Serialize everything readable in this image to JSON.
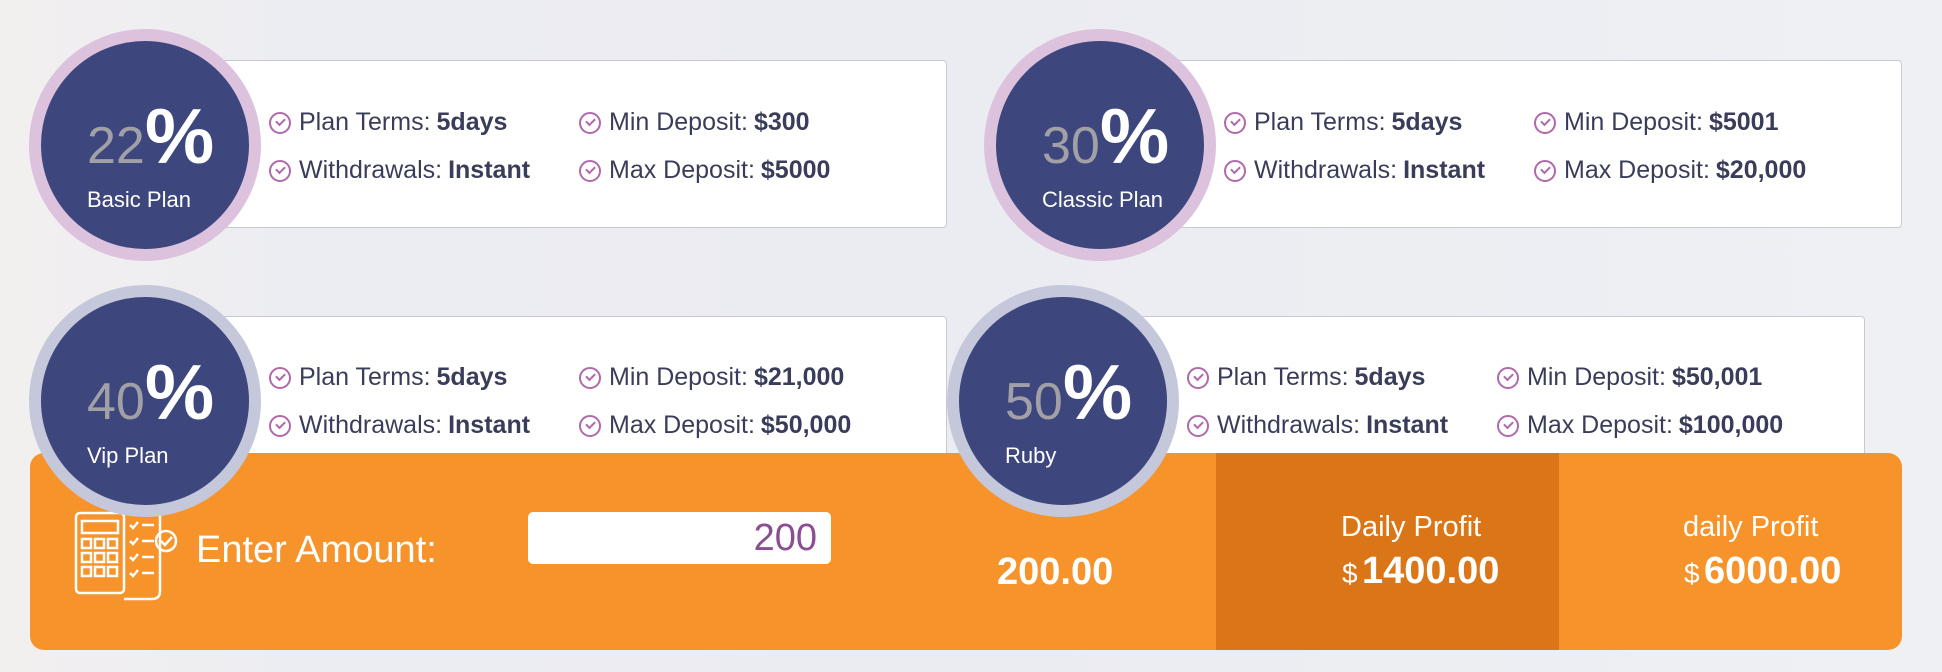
{
  "plans": [
    {
      "percent": "22",
      "sign": "%",
      "name": "Basic Plan",
      "terms_label": "Plan Terms:",
      "terms_value": "5days",
      "withdraw_label": "Withdrawals:",
      "withdraw_value": "Instant",
      "min_label": "Min Deposit:",
      "min_value": "$300",
      "max_label": "Max Deposit:",
      "max_value": "$5000"
    },
    {
      "percent": "30",
      "sign": "%",
      "name": "Classic Plan",
      "terms_label": "Plan Terms:",
      "terms_value": "5days",
      "withdraw_label": "Withdrawals:",
      "withdraw_value": "Instant",
      "min_label": "Min Deposit:",
      "min_value": "$5001",
      "max_label": "Max Deposit:",
      "max_value": "$20,000"
    },
    {
      "percent": "40",
      "sign": "%",
      "name": "Vip Plan",
      "terms_label": "Plan Terms:",
      "terms_value": "5days",
      "withdraw_label": "Withdrawals:",
      "withdraw_value": "Instant",
      "min_label": "Min Deposit:",
      "min_value": "$21,000",
      "max_label": "Max Deposit:",
      "max_value": "$50,000"
    },
    {
      "percent": "50",
      "sign": "%",
      "name": "Ruby",
      "terms_label": "Plan Terms:",
      "terms_value": "5days",
      "withdraw_label": "Withdrawals:",
      "withdraw_value": "Instant",
      "min_label": "Min Deposit:",
      "min_value": "$50,001",
      "max_label": "Max Deposit:",
      "max_value": "$100,000"
    }
  ],
  "calculator": {
    "icon": "calculator-checklist-icon",
    "enter_label": "Enter Amount:",
    "amount_value": "200",
    "total": "200.00",
    "daily_profit_label": "Daily Profit",
    "daily_profit_currency": "$",
    "daily_profit_value": "1400.00",
    "daily_profit2_label": "daily Profit",
    "daily_profit2_currency": "$",
    "daily_profit2_value": "6000.00"
  },
  "colors": {
    "accent_orange": "#f6932b",
    "dark_orange": "#da7618",
    "plan_circle": "#3e467e",
    "check_purple": "#b06aa9"
  }
}
